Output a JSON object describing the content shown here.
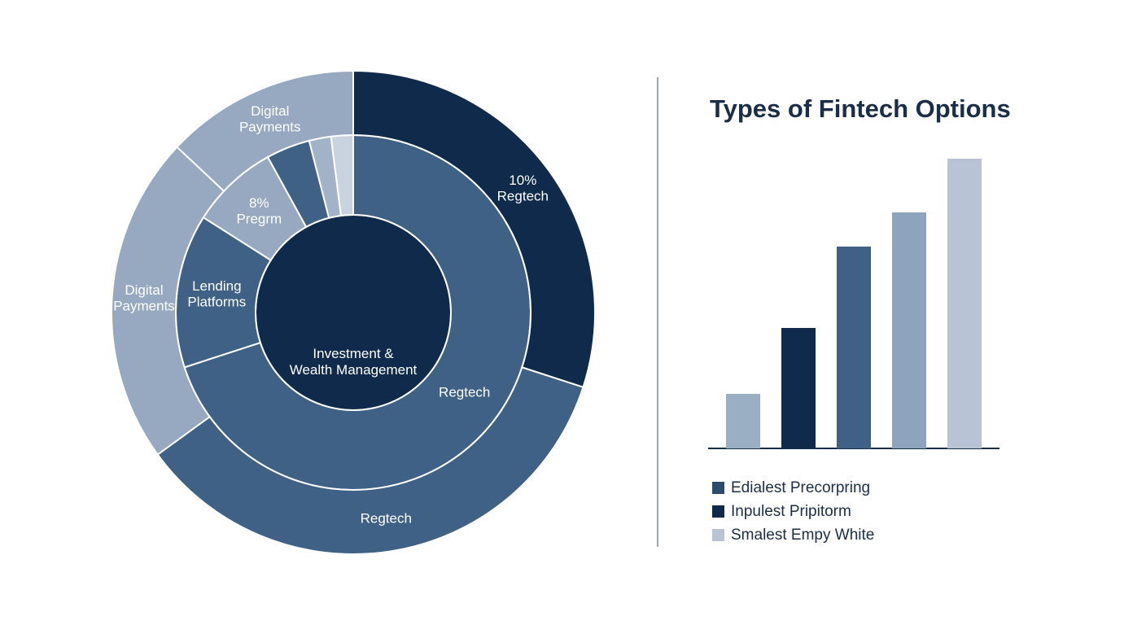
{
  "chart_data": [
    {
      "type": "sunburst",
      "rings": [
        {
          "segments": [
            {
              "name": "Investment &\nWealth Management",
              "value": 100,
              "color": "#0f2a4a"
            }
          ]
        },
        {
          "segments": [
            {
              "name": "Regtech",
              "value": 70,
              "color": "#3f6185"
            },
            {
              "name": "Lending\nPlatforms",
              "value": 14,
              "color": "#3f6185"
            },
            {
              "name": "8%\nPregrm",
              "value": 8,
              "color": "#97a9c1"
            },
            {
              "value": 4,
              "color": "#3f6185"
            },
            {
              "value": 2,
              "color": "#a3b3c7"
            },
            {
              "value": 2,
              "color": "#c9d3df"
            }
          ]
        },
        {
          "segments": [
            {
              "name": "10%\nRegtech",
              "value": 30,
              "color": "#0f2a4a"
            },
            {
              "name": "Regtech",
              "value": 35,
              "color": "#3f6185"
            },
            {
              "name": "Digital\nPayments",
              "value": 22,
              "color": "#97a9c1"
            },
            {
              "name": "Digital\nPayments",
              "value": 13,
              "color": "#97a9c1"
            }
          ]
        }
      ]
    },
    {
      "type": "bar",
      "title": "Types of Fintech Options",
      "categories": [
        null,
        null,
        null,
        null,
        null
      ],
      "values": [
        67,
        148,
        248,
        290,
        356
      ],
      "colors": [
        "#9aaec4",
        "#0f2a4a",
        "#3f6185",
        "#8ea3bc",
        "#b8c4d3"
      ],
      "legend": [
        {
          "name": "Edialest Precorpring",
          "color": "#2d4b6e"
        },
        {
          "name": "Inpulest Pripitorm",
          "color": "#0f2a4a"
        },
        {
          "name": "Smalest Empy White",
          "color": "#b8c4d3"
        }
      ]
    }
  ]
}
